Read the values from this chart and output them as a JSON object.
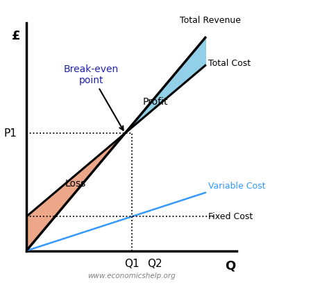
{
  "background_color": "#ffffff",
  "xlim": [
    0,
    10
  ],
  "ylim": [
    0,
    10
  ],
  "fixed_cost_y": 1.5,
  "variable_cost_slope": 0.3,
  "total_cost_slope": 0.78,
  "total_revenue_slope": 1.1,
  "Q1": 5.0,
  "Q2": 6.1,
  "x_end": 8.5,
  "xlabel": "Q",
  "ylabel": "£",
  "label_total_revenue": "Total Revenue",
  "label_total_cost": "Total Cost",
  "label_variable_cost": "Variable Cost",
  "label_fixed_cost": "Fixed Cost",
  "label_profit": "Profit",
  "label_loss": "Loss",
  "label_break_even": "Break-even\npoint",
  "label_P1": "P1",
  "label_Q1": "Q1",
  "label_Q2": "Q2",
  "label_watermark": "www.economicshelp.org",
  "color_total_revenue": "#000000",
  "color_total_cost": "#000000",
  "color_variable_cost": "#3399FF",
  "color_fixed_cost": "#000000",
  "color_profit_fill": "#7EC8E3",
  "color_loss_fill": "#E8916A",
  "color_break_even_text": "#2222AA",
  "lw_main": 2.2,
  "lw_variable": 1.8,
  "lw_dotted": 1.3
}
